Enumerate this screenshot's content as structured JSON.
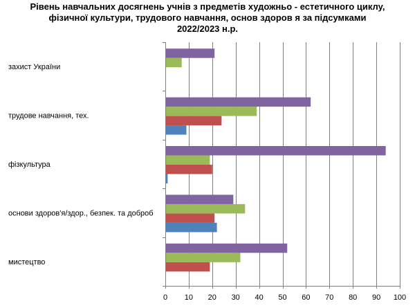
{
  "chart_data": {
    "type": "bar",
    "orientation": "horizontal",
    "title_lines": [
      "Рівень навчальних досягнень учнів з предметів художньо - естетичного циклу,",
      "фізичної культури, трудового навчання, основ здоров я за підсумками",
      "2022/2023 н.р."
    ],
    "categories": [
      "захист України",
      "трудове навчання, тех.",
      "фізкультура",
      "основи здоров'я/здор., безпек. та доброб",
      "мистецтво"
    ],
    "series": [
      {
        "color": "#4f81bd",
        "values": [
          0,
          9,
          1,
          22,
          0
        ]
      },
      {
        "color": "#c0504d",
        "values": [
          0,
          24,
          20,
          21,
          19
        ]
      },
      {
        "color": "#9bbb59",
        "values": [
          7,
          39,
          19,
          34,
          32
        ]
      },
      {
        "color": "#8064a2",
        "values": [
          21,
          62,
          94,
          29,
          52
        ]
      }
    ],
    "xlim": [
      0,
      100
    ],
    "xticks": [
      0,
      10,
      20,
      30,
      40,
      50,
      60,
      70,
      80,
      90,
      100
    ],
    "grid": true,
    "legend": "none"
  }
}
